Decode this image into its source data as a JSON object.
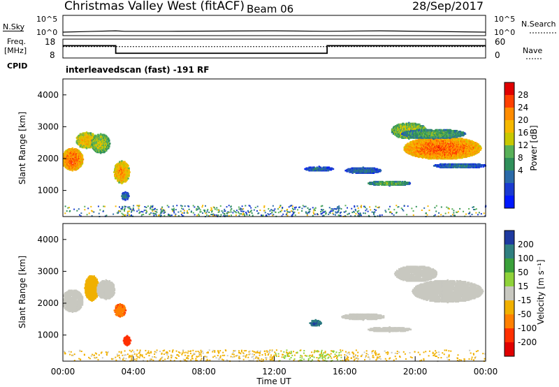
{
  "header": {
    "station": "Christmas Valley West (fitACF)",
    "beam": "Beam 06",
    "date": "28/Sep/2017"
  },
  "sky_panel": {
    "left_label": "N.Sky",
    "left_ticks": [
      "10^5",
      "10^0"
    ],
    "right_label": "N.Search",
    "right_ticks": [
      "10^5",
      "10^0"
    ]
  },
  "freq_panel": {
    "left_label_1": "Freq.",
    "left_label_2": "[MHz]",
    "left_ticks": [
      "18",
      "8"
    ],
    "right_label": "Nave",
    "right_ticks": [
      "60",
      "0"
    ],
    "cpid_label": "CPID",
    "cpid_text": "interleavedscan (fast) -191 RF"
  },
  "power_panel": {
    "ylabel": "Slant Range [km]",
    "colorbar_label": "Power [dB]",
    "colorbar_ticks": [
      "28",
      "24",
      "20",
      "16",
      "12",
      "8",
      "4"
    ],
    "colorbar_colors": [
      "#e00000",
      "#ff4000",
      "#ff8c00",
      "#f5b800",
      "#c8c800",
      "#58b058",
      "#2f8f5a",
      "#2a6aa8",
      "#1a3ad0",
      "#0018ff"
    ]
  },
  "velocity_panel": {
    "ylabel": "Slant Range [km]",
    "colorbar_label": "Velocity [m s⁻¹]",
    "colorbar_ticks": [
      "200",
      "100",
      "50",
      "15",
      "-15",
      "-50",
      "-100",
      "-200"
    ],
    "colorbar_colors": [
      "#1e3aa0",
      "#2f7f80",
      "#3aa03a",
      "#8fd23a",
      "#c8c8c0",
      "#f0b000",
      "#ff8000",
      "#ff3000",
      "#e00000"
    ]
  },
  "x_axis": {
    "label": "Time UT",
    "ticks": [
      "00:00",
      "04:00",
      "08:00",
      "12:00",
      "16:00",
      "20:00",
      "00:00"
    ]
  },
  "chart_data": [
    {
      "type": "line",
      "title": "N.Sky",
      "x": [
        0,
        3.0,
        3.5,
        6.0,
        12.1,
        15.0,
        18.0,
        24
      ],
      "series": [
        {
          "name": "N.Sky",
          "values": [
            1,
            3,
            2,
            2,
            3,
            2,
            3,
            1
          ]
        }
      ],
      "note_scale": "log"
    },
    {
      "type": "line",
      "title": "Freq.",
      "x": [
        0,
        3.0,
        3.0,
        15.0,
        15.0,
        24
      ],
      "series": [
        {
          "name": "Freq.",
          "values": [
            14.5,
            14.5,
            10.5,
            10.5,
            14.5,
            14.5
          ]
        },
        {
          "name": "Nave",
          "values": [
            36,
            36,
            36,
            36,
            36,
            36
          ]
        }
      ],
      "ylim": [
        8,
        18
      ]
    },
    {
      "type": "heatmap",
      "title": "Power [dB]",
      "xlabel": "Time UT",
      "ylabel": "Slant Range [km]",
      "xlim": [
        0,
        24
      ],
      "ylim": [
        180,
        4500
      ],
      "zlim": [
        0,
        32
      ],
      "blobs": [
        {
          "t": 0.5,
          "r": 2000,
          "dt": 0.6,
          "dr": 350,
          "z": 27
        },
        {
          "t": 1.3,
          "r": 2600,
          "dt": 0.6,
          "dr": 250,
          "z": 22
        },
        {
          "t": 2.1,
          "r": 2500,
          "dt": 0.5,
          "dr": 300,
          "z": 18
        },
        {
          "t": 3.3,
          "r": 1600,
          "dt": 0.45,
          "dr": 350,
          "z": 24
        },
        {
          "t": 3.5,
          "r": 850,
          "dt": 0.2,
          "dr": 120,
          "z": 10
        },
        {
          "t": 14.5,
          "r": 1700,
          "dt": 0.8,
          "dr": 80,
          "z": 8
        },
        {
          "t": 17.0,
          "r": 1650,
          "dt": 1.0,
          "dr": 100,
          "z": 9
        },
        {
          "t": 18.5,
          "r": 1250,
          "dt": 1.2,
          "dr": 70,
          "z": 14
        },
        {
          "t": 19.6,
          "r": 2900,
          "dt": 1.0,
          "dr": 250,
          "z": 18
        },
        {
          "t": 21.5,
          "r": 2350,
          "dt": 2.2,
          "dr": 350,
          "z": 27
        },
        {
          "t": 21.0,
          "r": 2800,
          "dt": 1.8,
          "dr": 150,
          "z": 14
        },
        {
          "t": 22.5,
          "r": 1800,
          "dt": 1.5,
          "dr": 80,
          "z": 9
        }
      ]
    },
    {
      "type": "heatmap",
      "title": "Velocity [m s⁻¹]",
      "xlabel": "Time UT",
      "ylabel": "Slant Range [km]",
      "xlim": [
        0,
        24
      ],
      "ylim": [
        180,
        4500
      ],
      "zlim": [
        -250,
        250
      ],
      "blobs": [
        {
          "t": 0.5,
          "r": 2100,
          "dt": 0.6,
          "dr": 350,
          "z": 0
        },
        {
          "t": 1.6,
          "r": 2500,
          "dt": 0.4,
          "dr": 400,
          "z": -40
        },
        {
          "t": 2.4,
          "r": 2450,
          "dt": 0.5,
          "dr": 300,
          "z": 0
        },
        {
          "t": 3.2,
          "r": 1800,
          "dt": 0.3,
          "dr": 200,
          "z": -150
        },
        {
          "t": 3.6,
          "r": 850,
          "dt": 0.2,
          "dr": 150,
          "z": -200
        },
        {
          "t": 14.3,
          "r": 1400,
          "dt": 0.3,
          "dr": 100,
          "z": 220
        },
        {
          "t": 17.0,
          "r": 1600,
          "dt": 1.2,
          "dr": 100,
          "z": 0
        },
        {
          "t": 18.5,
          "r": 1200,
          "dt": 1.2,
          "dr": 80,
          "z": 0
        },
        {
          "t": 20.0,
          "r": 2950,
          "dt": 1.2,
          "dr": 250,
          "z": 0
        },
        {
          "t": 21.8,
          "r": 2400,
          "dt": 2.0,
          "dr": 350,
          "z": 0
        }
      ]
    }
  ]
}
